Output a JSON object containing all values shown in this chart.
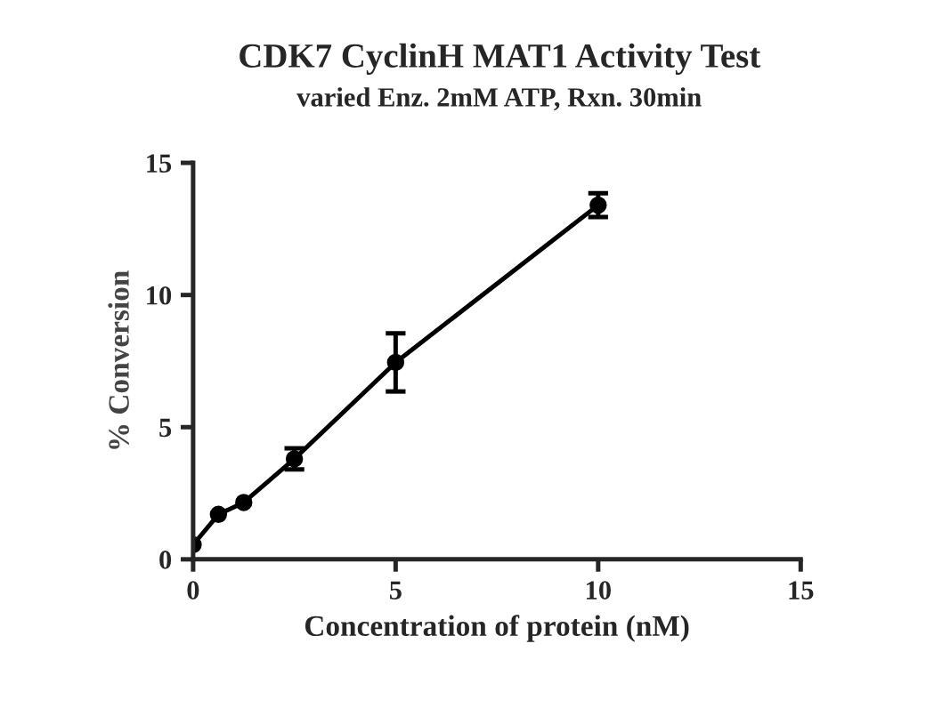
{
  "chart_data": {
    "type": "line",
    "title": "CDK7 CyclinH MAT1 Activity Test",
    "subtitle": "varied Enz. 2mM ATP, Rxn. 30min",
    "xlabel": "Concentration of protein (nM)",
    "ylabel": "% Conversion",
    "x": [
      0,
      0.625,
      1.25,
      2.5,
      5,
      10
    ],
    "series": [
      {
        "color": "#000000",
        "values": [
          0.55,
          1.7,
          2.15,
          3.8,
          7.45,
          13.4
        ],
        "errors": [
          null,
          null,
          null,
          0.4,
          1.1,
          0.45
        ]
      }
    ],
    "xlim": [
      0,
      15
    ],
    "ylim": [
      0,
      15
    ],
    "xticks": [
      0,
      5,
      10,
      15
    ],
    "yticks": [
      0,
      5,
      10,
      15
    ],
    "marker": "circle",
    "line_style": "solid",
    "grid": false,
    "legend": false
  }
}
